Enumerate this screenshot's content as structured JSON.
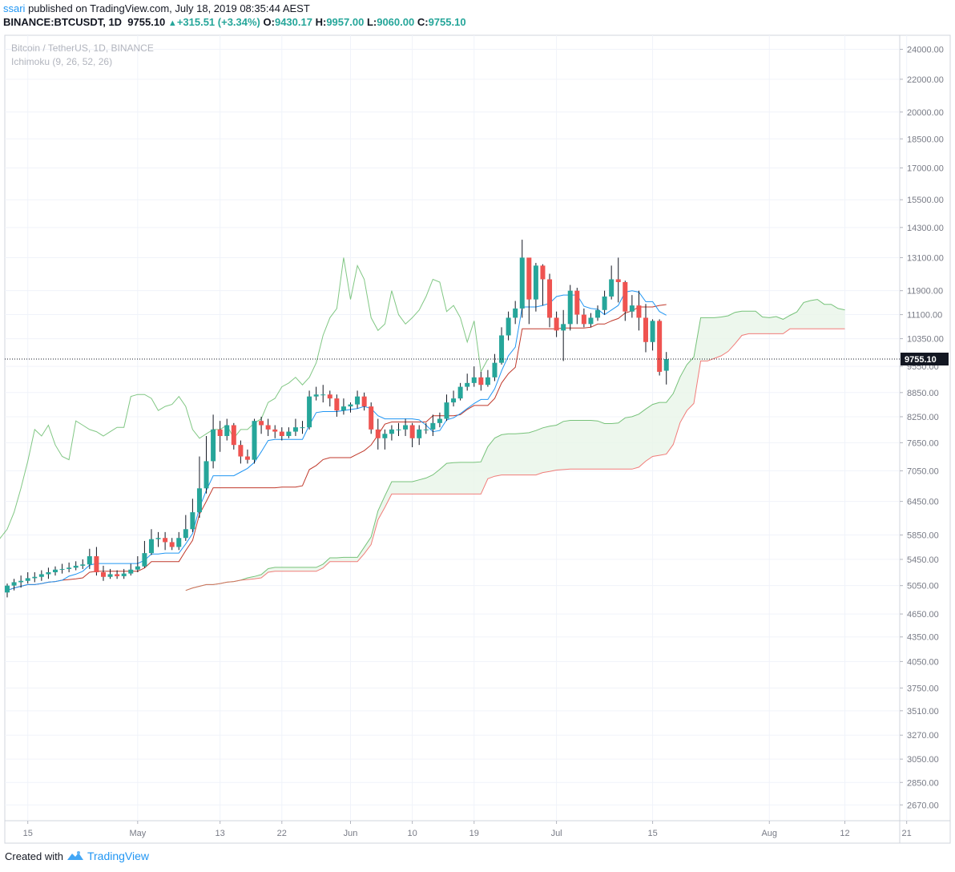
{
  "header": {
    "user": "ssari",
    "published": " published on TradingView.com, July 18, 2019 08:35:44 AEST",
    "symbol": "BINANCE:BTCUSDT, 1D",
    "last": "9755.10",
    "change": "+315.51 (+3.34%)",
    "o_label": "O:",
    "o_value": "9430.17",
    "h_label": "H:",
    "h_value": "9957.00",
    "l_label": "L:",
    "l_value": "9060.00",
    "c_label": "C:",
    "c_value": "9755.10"
  },
  "legend": {
    "series_title": "Bitcoin / TetherUS, 1D, BINANCE",
    "indicator": "Ichimoku (9, 26, 52, 26)"
  },
  "footer": {
    "created_with": "Created with",
    "brand": "TradingView"
  },
  "colors": {
    "up": "#26a69a",
    "down": "#ef5350",
    "tenkan": "#2196f3",
    "kijun": "#c0392b",
    "span_a": "#4caf50",
    "span_b": "#ef5350",
    "cloud": "#e8f5e9",
    "grid": "#f0f3fa",
    "axis_text": "#787b86"
  },
  "chart_data": {
    "type": "candlestick",
    "title": "Bitcoin / TetherUS, 1D, BINANCE",
    "scale": "log",
    "ylim": [
      2550,
      25000
    ],
    "start_date": "2019-04-12",
    "grid": true,
    "last_price_label": "9755.10",
    "last_price": 9755.1,
    "y_ticks": [
      24000,
      22000,
      20000,
      18500,
      17000,
      15500,
      14300,
      13100,
      11900,
      11100,
      10350,
      9550,
      8850,
      8250,
      7650,
      7050,
      6450,
      5850,
      5450,
      5050,
      4650,
      4350,
      4050,
      3750,
      3510,
      3270,
      3050,
      2850,
      2670
    ],
    "y_tick_labels": [
      "24000.00",
      "22000.00",
      "20000.00",
      "18500.00",
      "17000.00",
      "15500.00",
      "14300.00",
      "13100.00",
      "11900.00",
      "11100.00",
      "10350.00",
      "9550.00",
      "8850.00",
      "8250.00",
      "7650.00",
      "7050.00",
      "6450.00",
      "5850.00",
      "5450.00",
      "5050.00",
      "4650.00",
      "4350.00",
      "4050.00",
      "3750.00",
      "3510.00",
      "3270.00",
      "3050.00",
      "2850.00",
      "2670.00"
    ],
    "x_ticks": [
      {
        "date": "2019-04-15",
        "label": "15"
      },
      {
        "date": "2019-05-01",
        "label": "May"
      },
      {
        "date": "2019-05-13",
        "label": "13"
      },
      {
        "date": "2019-05-22",
        "label": "22"
      },
      {
        "date": "2019-06-01",
        "label": "Jun"
      },
      {
        "date": "2019-06-10",
        "label": "10"
      },
      {
        "date": "2019-06-19",
        "label": "19"
      },
      {
        "date": "2019-07-01",
        "label": "Jul"
      },
      {
        "date": "2019-07-15",
        "label": "15"
      },
      {
        "date": "2019-08-01",
        "label": "Aug"
      },
      {
        "date": "2019-08-12",
        "label": "12"
      },
      {
        "date": "2019-08-21",
        "label": "21"
      }
    ],
    "candles_close": [
      5050,
      5100,
      5120,
      5160,
      5180,
      5220,
      5250,
      5290,
      5300,
      5320,
      5350,
      5370,
      5500,
      5250,
      5180,
      5220,
      5190,
      5230,
      5290,
      5340,
      5550,
      5780,
      5800,
      5730,
      5650,
      5800,
      5950,
      6250,
      6700,
      7250,
      7950,
      7800,
      8050,
      7600,
      7350,
      7280,
      8150,
      8050,
      7950,
      7900,
      7800,
      7900,
      8000,
      8000,
      8750,
      8800,
      8800,
      8700,
      8400,
      8500,
      8550,
      8750,
      8500,
      7950,
      7750,
      7850,
      7950,
      7950,
      8050,
      7750,
      7950,
      7950,
      8100,
      8200,
      8600,
      8700,
      9000,
      9100,
      9250,
      9050,
      9250,
      9650,
      10450,
      11000,
      11300,
      13100,
      11600,
      12800,
      12300,
      11000,
      10600,
      10800,
      11900,
      11100,
      10800,
      11000,
      11250,
      11700,
      12300,
      12200,
      11200,
      11400,
      11000,
      10250,
      10900,
      9400,
      9755.1
    ],
    "candles_open": [
      4950,
      5050,
      5100,
      5120,
      5160,
      5180,
      5220,
      5250,
      5290,
      5300,
      5320,
      5350,
      5370,
      5500,
      5250,
      5180,
      5220,
      5190,
      5230,
      5290,
      5340,
      5550,
      5780,
      5800,
      5730,
      5650,
      5800,
      5950,
      6250,
      6700,
      7250,
      7950,
      7800,
      8050,
      7600,
      7350,
      7280,
      8150,
      8050,
      7950,
      7900,
      7800,
      7900,
      8000,
      8000,
      8750,
      8800,
      8800,
      8700,
      8400,
      8500,
      8550,
      8750,
      8500,
      7950,
      7750,
      7850,
      7950,
      7950,
      8050,
      7750,
      7950,
      7950,
      8100,
      8200,
      8600,
      8700,
      9000,
      9100,
      9250,
      9050,
      9250,
      9650,
      10450,
      11000,
      11300,
      13100,
      11600,
      12800,
      12300,
      11000,
      10600,
      10800,
      11900,
      11100,
      10800,
      11000,
      11250,
      11700,
      12300,
      12200,
      11200,
      11400,
      11000,
      10250,
      10900,
      9430.17
    ],
    "candles_high": [
      5080,
      5150,
      5200,
      5250,
      5250,
      5280,
      5320,
      5340,
      5380,
      5400,
      5420,
      5450,
      5620,
      5650,
      5350,
      5300,
      5280,
      5300,
      5380,
      5500,
      5750,
      5950,
      5900,
      5900,
      5800,
      5900,
      6200,
      6500,
      7350,
      7800,
      8300,
      8150,
      8200,
      8100,
      7700,
      7500,
      8200,
      8250,
      8200,
      8050,
      8000,
      8000,
      8200,
      8150,
      8900,
      9000,
      9050,
      8900,
      8800,
      8700,
      8600,
      8900,
      8850,
      8600,
      8200,
      7950,
      8050,
      8100,
      8200,
      8100,
      8050,
      8100,
      8300,
      8350,
      8800,
      8900,
      9100,
      9350,
      9550,
      9400,
      9450,
      9900,
      10700,
      11200,
      11550,
      13800,
      13050,
      12900,
      12850,
      12500,
      11200,
      11250,
      12100,
      12000,
      11300,
      11150,
      11400,
      11900,
      12800,
      13100,
      12250,
      11750,
      11900,
      11450,
      10950,
      10950,
      9957
    ],
    "candles_low": [
      4880,
      4980,
      5020,
      5080,
      5100,
      5120,
      5150,
      5200,
      5230,
      5250,
      5280,
      5300,
      5300,
      5200,
      5120,
      5150,
      5150,
      5150,
      5200,
      5250,
      5320,
      5520,
      5650,
      5600,
      5600,
      5600,
      5750,
      5900,
      6150,
      6600,
      7100,
      7450,
      7700,
      7500,
      7200,
      7200,
      7200,
      7850,
      7800,
      7750,
      7700,
      7750,
      7800,
      7850,
      7950,
      8650,
      8600,
      8500,
      8250,
      8300,
      8350,
      8450,
      8400,
      7850,
      7500,
      7500,
      7700,
      7800,
      7800,
      7550,
      7600,
      7850,
      7800,
      8000,
      8150,
      8500,
      8650,
      8900,
      9000,
      8900,
      9000,
      9150,
      9600,
      10300,
      10800,
      11000,
      10800,
      11200,
      11400,
      10700,
      10400,
      9700,
      10600,
      10800,
      10700,
      10700,
      10900,
      11100,
      11600,
      11500,
      10900,
      11000,
      10600,
      9950,
      10000,
      9300,
      9060
    ]
  }
}
